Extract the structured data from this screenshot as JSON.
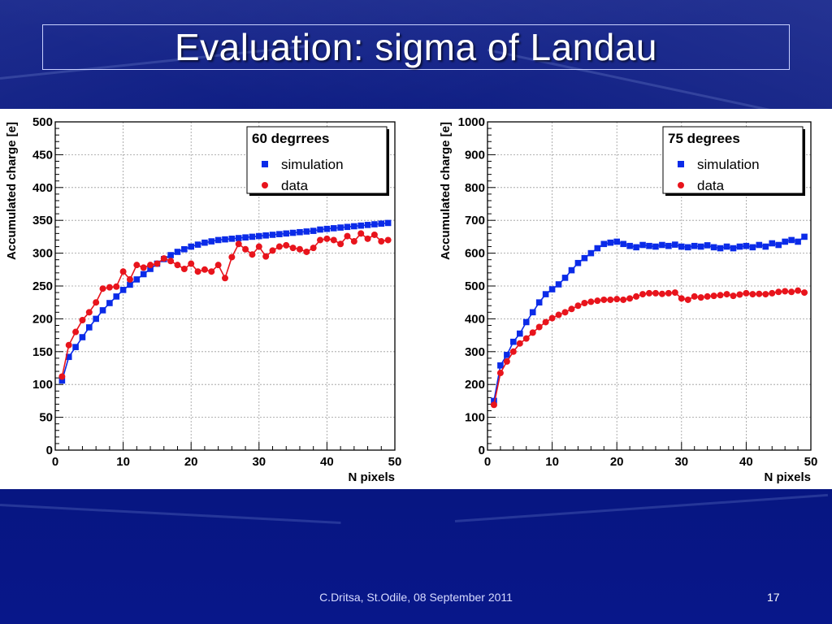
{
  "slide": {
    "title": "Evaluation: sigma of Landau",
    "footer": "C.Dritsa, St.Odile,  08 September 2011",
    "page_number": "17"
  },
  "colors": {
    "simulation": "#0b2be8",
    "data": "#e8141c",
    "background": "#0a1a7a"
  },
  "chart_data": [
    {
      "type": "scatter",
      "legend_title": "60 degrrees",
      "legend_position": "top-right",
      "xlabel": "N pixels",
      "ylabel": "Accumulated charge [e]",
      "xlim": [
        0,
        50
      ],
      "ylim": [
        0,
        500
      ],
      "x_ticks": [
        0,
        10,
        20,
        30,
        40,
        50
      ],
      "y_ticks": [
        0,
        50,
        100,
        150,
        200,
        250,
        300,
        350,
        400,
        450,
        500
      ],
      "grid": true,
      "series": [
        {
          "name": "simulation",
          "marker": "square",
          "color": "#0b2be8",
          "x": [
            1,
            2,
            3,
            4,
            5,
            6,
            7,
            8,
            9,
            10,
            11,
            12,
            13,
            14,
            15,
            16,
            17,
            18,
            19,
            20,
            21,
            22,
            23,
            24,
            25,
            26,
            27,
            28,
            29,
            30,
            31,
            32,
            33,
            34,
            35,
            36,
            37,
            38,
            39,
            40,
            41,
            42,
            43,
            44,
            45,
            46,
            47,
            48,
            49
          ],
          "y": [
            106,
            142,
            157,
            172,
            187,
            200,
            213,
            224,
            234,
            244,
            252,
            260,
            268,
            276,
            284,
            291,
            297,
            302,
            306,
            310,
            313,
            316,
            318,
            320,
            321,
            322,
            323,
            324,
            325,
            326,
            327,
            328,
            329,
            330,
            331,
            332,
            333,
            334,
            336,
            337,
            338,
            339,
            340,
            341,
            342,
            343,
            344,
            345,
            346
          ]
        },
        {
          "name": "data",
          "marker": "circle",
          "color": "#e8141c",
          "x": [
            1,
            2,
            3,
            4,
            5,
            6,
            7,
            8,
            9,
            10,
            11,
            12,
            13,
            14,
            15,
            16,
            17,
            18,
            19,
            20,
            21,
            22,
            23,
            24,
            25,
            26,
            27,
            28,
            29,
            30,
            31,
            32,
            33,
            34,
            35,
            36,
            37,
            38,
            39,
            40,
            41,
            42,
            43,
            44,
            45,
            46,
            47,
            48,
            49
          ],
          "y": [
            112,
            160,
            180,
            198,
            210,
            225,
            246,
            248,
            249,
            272,
            260,
            282,
            278,
            282,
            284,
            292,
            288,
            282,
            276,
            284,
            272,
            275,
            272,
            282,
            262,
            294,
            314,
            306,
            298,
            310,
            295,
            304,
            310,
            312,
            308,
            306,
            302,
            308,
            320,
            322,
            320,
            314,
            326,
            318,
            330,
            322,
            328,
            318,
            320
          ]
        }
      ]
    },
    {
      "type": "scatter",
      "legend_title": "75 degrees",
      "legend_position": "top-right",
      "xlabel": "N pixels",
      "ylabel": "Accumulated charge [e]",
      "xlim": [
        0,
        50
      ],
      "ylim": [
        0,
        1000
      ],
      "x_ticks": [
        0,
        10,
        20,
        30,
        40,
        50
      ],
      "y_ticks": [
        0,
        100,
        200,
        300,
        400,
        500,
        600,
        700,
        800,
        900,
        1000
      ],
      "grid": true,
      "series": [
        {
          "name": "simulation",
          "marker": "square",
          "color": "#0b2be8",
          "x": [
            1,
            2,
            3,
            4,
            5,
            6,
            7,
            8,
            9,
            10,
            11,
            12,
            13,
            14,
            15,
            16,
            17,
            18,
            19,
            20,
            21,
            22,
            23,
            24,
            25,
            26,
            27,
            28,
            29,
            30,
            31,
            32,
            33,
            34,
            35,
            36,
            37,
            38,
            39,
            40,
            41,
            42,
            43,
            44,
            45,
            46,
            47,
            48,
            49
          ],
          "y": [
            150,
            258,
            290,
            330,
            355,
            390,
            420,
            450,
            475,
            490,
            505,
            525,
            548,
            570,
            585,
            600,
            615,
            628,
            632,
            635,
            628,
            622,
            618,
            625,
            622,
            620,
            625,
            622,
            626,
            620,
            618,
            622,
            620,
            624,
            618,
            615,
            620,
            615,
            620,
            622,
            618,
            625,
            620,
            630,
            625,
            635,
            640,
            635,
            650
          ]
        },
        {
          "name": "data",
          "marker": "circle",
          "color": "#e8141c",
          "x": [
            1,
            2,
            3,
            4,
            5,
            6,
            7,
            8,
            9,
            10,
            11,
            12,
            13,
            14,
            15,
            16,
            17,
            18,
            19,
            20,
            21,
            22,
            23,
            24,
            25,
            26,
            27,
            28,
            29,
            30,
            31,
            32,
            33,
            34,
            35,
            36,
            37,
            38,
            39,
            40,
            41,
            42,
            43,
            44,
            45,
            46,
            47,
            48,
            49
          ],
          "y": [
            138,
            235,
            270,
            300,
            325,
            340,
            358,
            375,
            390,
            402,
            412,
            420,
            430,
            440,
            448,
            452,
            455,
            458,
            458,
            460,
            458,
            462,
            468,
            475,
            478,
            478,
            476,
            478,
            480,
            462,
            458,
            468,
            465,
            468,
            470,
            472,
            475,
            470,
            474,
            478,
            475,
            476,
            475,
            478,
            482,
            484,
            482,
            486,
            480
          ]
        }
      ]
    }
  ]
}
